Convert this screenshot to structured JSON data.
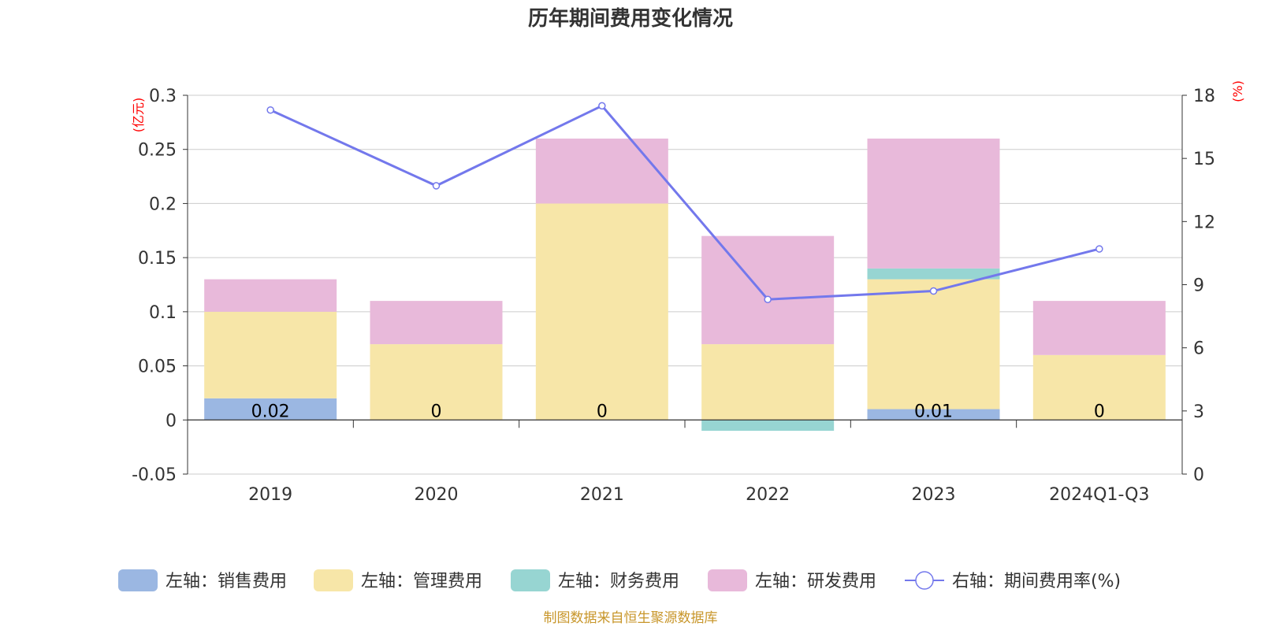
{
  "chart_data": {
    "type": "bar",
    "title": "历年期间费用变化情况",
    "categories": [
      "2019",
      "2020",
      "2021",
      "2022",
      "2023",
      "2024Q1-Q3"
    ],
    "left_axis": {
      "unit": "(亿元)",
      "ticks": [
        "0.3",
        "0.25",
        "0.2",
        "0.15",
        "0.1",
        "0.05",
        "0",
        "-0.05"
      ],
      "ylim": [
        -0.05,
        0.3
      ]
    },
    "right_axis": {
      "unit": "(%)",
      "ticks": [
        "18",
        "15",
        "12",
        "9",
        "6",
        "3",
        "0"
      ],
      "ylim": [
        0,
        18
      ]
    },
    "grid": true,
    "stacked": true,
    "series": [
      {
        "name": "左轴：销售费用",
        "type": "bar",
        "axis": "left",
        "color": "#9bb7e2",
        "values": [
          0.02,
          0,
          0,
          0,
          0.01,
          0
        ],
        "labels": [
          "0.02",
          "0",
          "0",
          "",
          "0.01",
          "0"
        ]
      },
      {
        "name": "左轴：管理费用",
        "type": "bar",
        "axis": "left",
        "color": "#f7e6a8",
        "values": [
          0.08,
          0.07,
          0.2,
          0.07,
          0.12,
          0.06
        ]
      },
      {
        "name": "左轴：财务费用",
        "type": "bar",
        "axis": "left",
        "color": "#97d5d2",
        "values": [
          0,
          0,
          0,
          -0.01,
          0.01,
          0
        ]
      },
      {
        "name": "左轴：研发费用",
        "type": "bar",
        "axis": "left",
        "color": "#e8b9da",
        "values": [
          0.03,
          0.04,
          0.06,
          0.1,
          0.12,
          0.05
        ]
      },
      {
        "name": "右轴：期间费用率(%)",
        "type": "line",
        "axis": "right",
        "color": "#7378ec",
        "values": [
          17.3,
          13.7,
          17.5,
          8.3,
          8.7,
          10.7
        ]
      }
    ],
    "legend_position": "bottom"
  },
  "source_note": "制图数据来自恒生聚源数据库"
}
